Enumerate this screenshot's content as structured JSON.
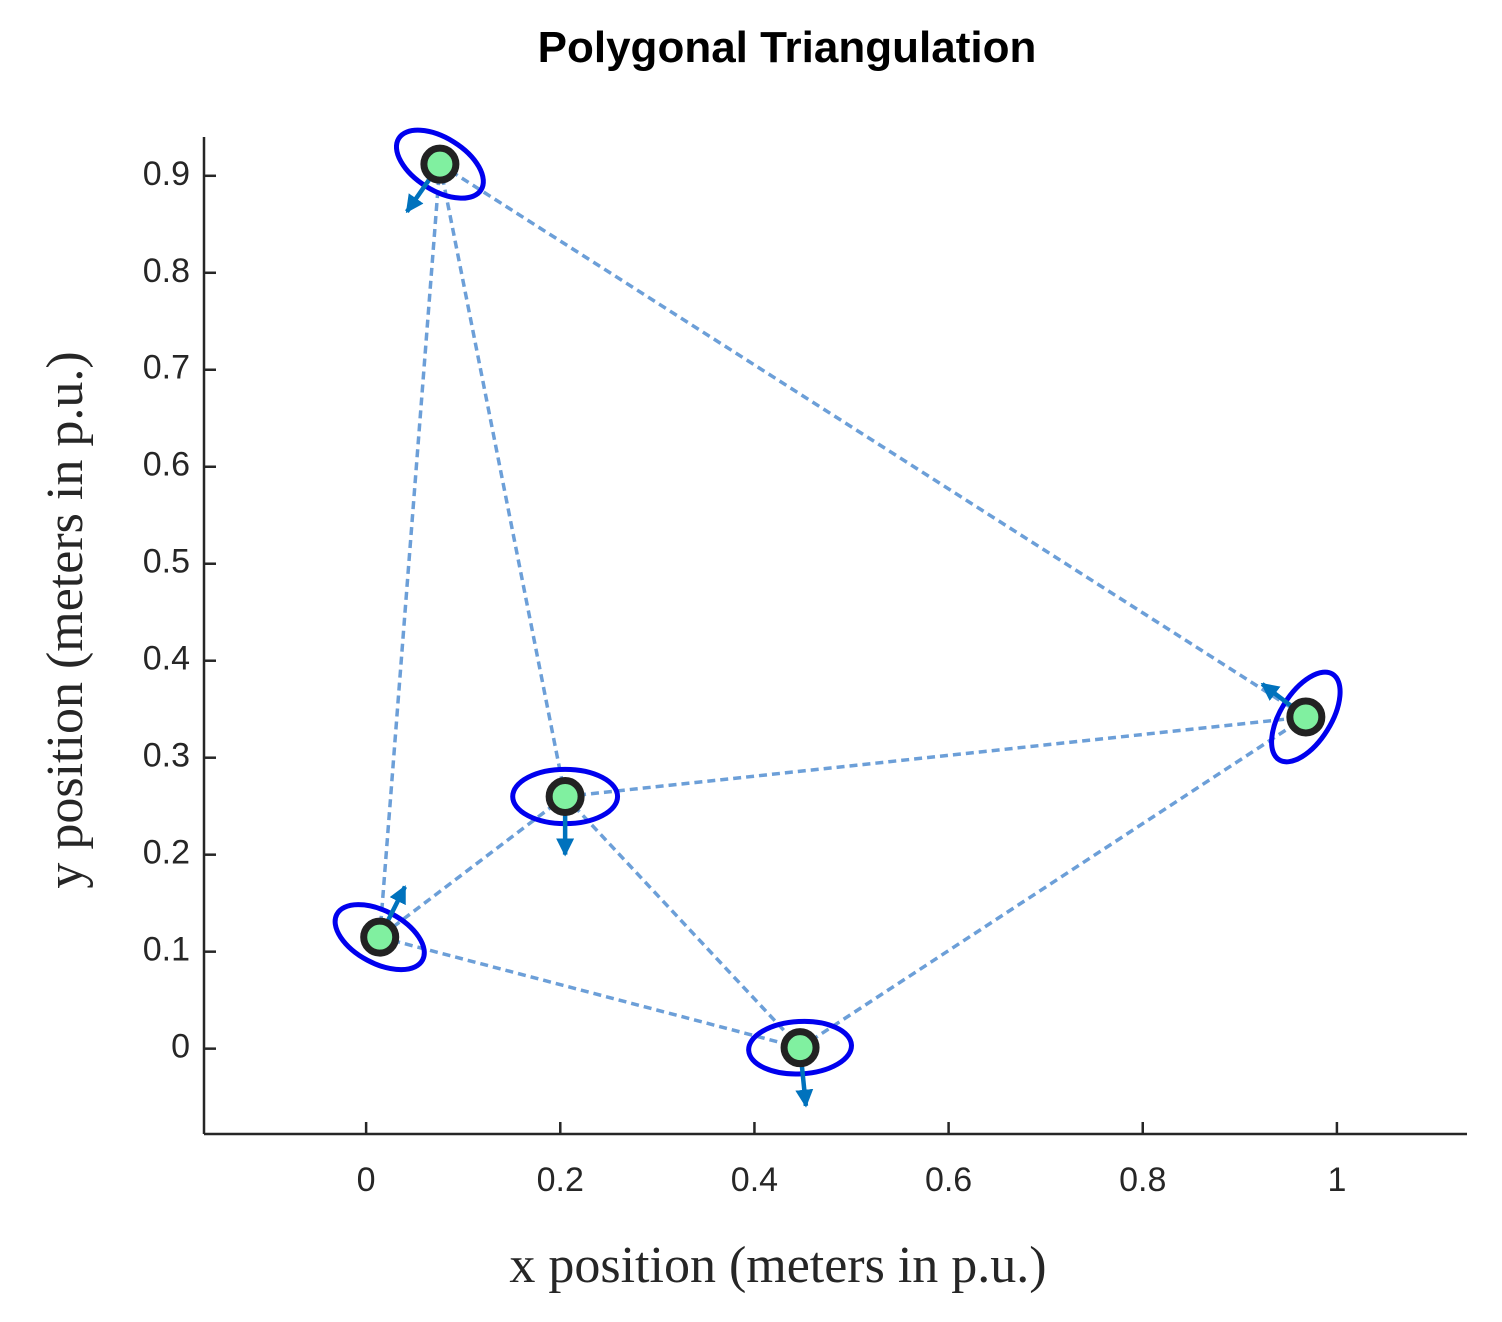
{
  "chart_data": {
    "type": "scatter",
    "title": "Polygonal Triangulation",
    "xlabel": "x position (meters in p.u.)",
    "ylabel": "y position (meters in p.u.)",
    "xlim": [
      -0.167,
      1.134
    ],
    "ylim": [
      -0.088,
      0.94
    ],
    "xticks": [
      0,
      0.2,
      0.4,
      0.6,
      0.8,
      1
    ],
    "yticks": [
      0,
      0.1,
      0.2,
      0.3,
      0.4,
      0.5,
      0.6,
      0.7,
      0.8,
      0.9
    ],
    "x": [
      0.076,
      0.968,
      0.205,
      0.014,
      0.447
    ],
    "values": [
      0.912,
      0.342,
      0.26,
      0.115,
      0.001
    ],
    "color": "#80f0a0",
    "ellipses": {
      "semi_major": [
        0.05,
        0.052,
        0.054,
        0.05,
        0.053
      ],
      "semi_minor": [
        0.027,
        0.026,
        0.028,
        0.027,
        0.027
      ],
      "angle": [
        -32,
        58,
        0,
        -28,
        3
      ],
      "color": "#0000ee"
    },
    "arrows": {
      "dx": [
        -0.034,
        -0.045,
        0,
        0.026,
        0.006
      ],
      "dy": [
        -0.049,
        0.034,
        -0.06,
        0.052,
        -0.06
      ],
      "color": "#0072bd"
    },
    "edges": [
      [
        0,
        1
      ],
      [
        0,
        2
      ],
      [
        0,
        3
      ],
      [
        2,
        1
      ],
      [
        2,
        3
      ],
      [
        2,
        4
      ],
      [
        3,
        4
      ],
      [
        4,
        1
      ]
    ],
    "edge_color": "#6c9fd8"
  }
}
